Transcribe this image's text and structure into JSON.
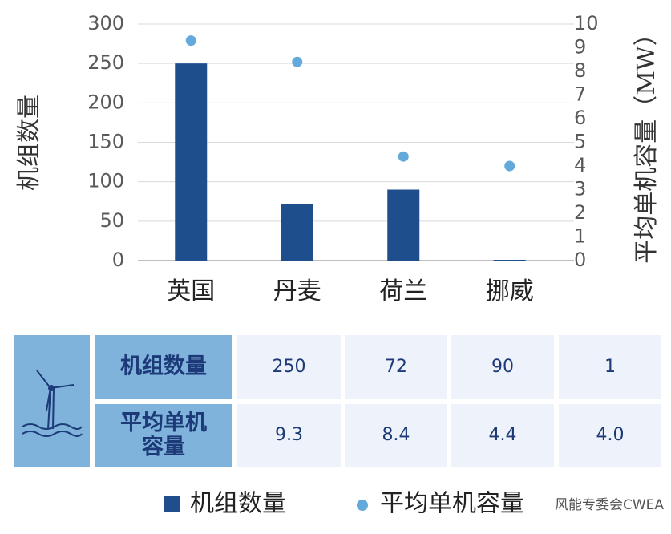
{
  "chart_data": {
    "type": "bar",
    "categories": [
      "英国",
      "丹麦",
      "荷兰",
      "挪威"
    ],
    "y_label": "机组数量",
    "y2_label": "平均单机容量（MW）",
    "series": [
      {
        "name": "机组数量",
        "type": "bar",
        "color": "#1f4e8c",
        "values": [
          250,
          72,
          90,
          1
        ]
      },
      {
        "name": "平均单机容量",
        "type": "scatter",
        "axis": "y2",
        "color": "#64a9dc",
        "values": [
          9.3,
          8.4,
          4.4,
          4.0
        ],
        "value_labels": [
          "9.3",
          "8.4",
          "4.4",
          "4.0"
        ]
      }
    ],
    "ylim": [
      0,
      300
    ],
    "yticks": [
      0,
      50,
      100,
      150,
      200,
      250,
      300
    ],
    "y2lim": [
      0,
      10
    ],
    "y2ticks": [
      0,
      1,
      2,
      3,
      4,
      5,
      6,
      7,
      8,
      9,
      10
    ],
    "grid": true,
    "watermark": "风能专委会CWEA"
  }
}
